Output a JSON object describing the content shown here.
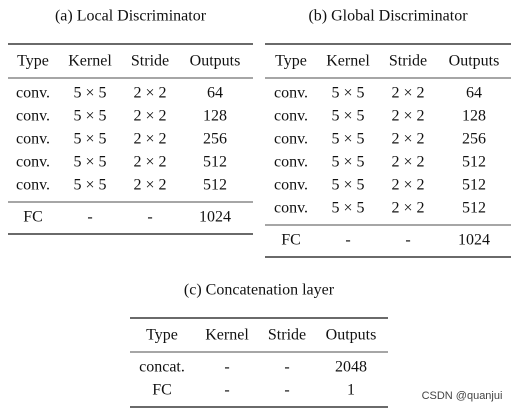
{
  "tables": [
    {
      "caption": "(a) Local Discriminator",
      "header": [
        "Type",
        "Kernel",
        "Stride",
        "Outputs"
      ],
      "groups": [
        [
          [
            "conv.",
            "5 × 5",
            "2 × 2",
            "64"
          ],
          [
            "conv.",
            "5 × 5",
            "2 × 2",
            "128"
          ],
          [
            "conv.",
            "5 × 5",
            "2 × 2",
            "256"
          ],
          [
            "conv.",
            "5 × 5",
            "2 × 2",
            "512"
          ],
          [
            "conv.",
            "5 × 5",
            "2 × 2",
            "512"
          ]
        ],
        [
          [
            "FC",
            "-",
            "-",
            "1024"
          ]
        ]
      ]
    },
    {
      "caption": "(b) Global Discriminator",
      "header": [
        "Type",
        "Kernel",
        "Stride",
        "Outputs"
      ],
      "groups": [
        [
          [
            "conv.",
            "5 × 5",
            "2 × 2",
            "64"
          ],
          [
            "conv.",
            "5 × 5",
            "2 × 2",
            "128"
          ],
          [
            "conv.",
            "5 × 5",
            "2 × 2",
            "256"
          ],
          [
            "conv.",
            "5 × 5",
            "2 × 2",
            "512"
          ],
          [
            "conv.",
            "5 × 5",
            "2 × 2",
            "512"
          ],
          [
            "conv.",
            "5 × 5",
            "2 × 2",
            "512"
          ]
        ],
        [
          [
            "FC",
            "-",
            "-",
            "1024"
          ]
        ]
      ]
    },
    {
      "caption": "(c) Concatenation layer",
      "header": [
        "Type",
        "Kernel",
        "Stride",
        "Outputs"
      ],
      "groups": [
        [
          [
            "concat.",
            "-",
            "-",
            "2048"
          ],
          [
            "FC",
            "-",
            "-",
            "1"
          ]
        ]
      ]
    }
  ],
  "watermark": "CSDN @quanjui"
}
